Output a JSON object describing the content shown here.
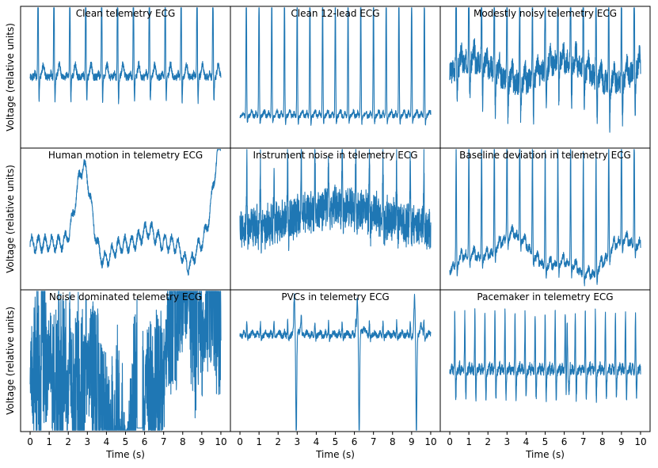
{
  "chart_data": {
    "type": "line",
    "layout": "3x3 grid of small multiples",
    "xlabel": "Time (s)",
    "ylabel": "Voltage (relative units)",
    "xlim": [
      -0.5,
      10.5
    ],
    "xticks": [
      0,
      1,
      2,
      3,
      4,
      5,
      6,
      7,
      8,
      9,
      10
    ],
    "ylim": [
      -1,
      1
    ],
    "yticks_shown": false,
    "grid": false,
    "line_color": "#1f77b4",
    "panels": [
      {
        "title": "Clean telemetry ECG",
        "type": "line",
        "waveform": {
          "kind": "telemetry",
          "beats_per_10s": 12,
          "baseline": 0.0,
          "r_peak": 1.6,
          "s_depth": -0.35,
          "t_wave": 0.18,
          "noise": 0.05,
          "drift": 0.0,
          "seed": 1
        }
      },
      {
        "title": "Clean 12-lead ECG",
        "type": "line",
        "waveform": {
          "kind": "sharp",
          "beats_per_10s": 15,
          "baseline": -0.55,
          "r_peak": 1.95,
          "s_depth": -0.12,
          "t_wave": 0.07,
          "noise": 0.03,
          "drift": 0.0,
          "seed": 2
        }
      },
      {
        "title": "Modestly noisy telemetry ECG",
        "type": "line",
        "waveform": {
          "kind": "telemetry",
          "beats_per_10s": 15,
          "baseline": 0.05,
          "r_peak": 1.55,
          "s_depth": -0.55,
          "t_wave": 0.2,
          "noise": 0.16,
          "drift": 0.15,
          "seed": 3
        }
      },
      {
        "title": "Human motion in telemetry ECG",
        "type": "line",
        "waveform": {
          "kind": "motion",
          "beats_per_10s": 0,
          "baseline": -0.1,
          "r_peak": 0.0,
          "s_depth": 0.0,
          "t_wave": 0.0,
          "noise": 0.05,
          "drift": 0.0,
          "seed": 4
        }
      },
      {
        "title": "Instrument noise in telemetry ECG",
        "type": "line",
        "waveform": {
          "kind": "instrument",
          "beats_per_10s": 14,
          "baseline": 0.0,
          "r_peak": 1.2,
          "s_depth": -0.25,
          "t_wave": 0.0,
          "noise": 0.35,
          "drift": 0.15,
          "seed": 5
        }
      },
      {
        "title": "Baseline deviation in telemetry ECG",
        "type": "line",
        "waveform": {
          "kind": "baseline",
          "beats_per_10s": 15,
          "baseline": -0.55,
          "r_peak": 1.7,
          "s_depth": -0.15,
          "t_wave": 0.12,
          "noise": 0.05,
          "drift": 0.35,
          "seed": 6
        }
      },
      {
        "title": "Noise dominated telemetry ECG",
        "type": "line",
        "waveform": {
          "kind": "noisedom",
          "beats_per_10s": 12,
          "baseline": 0.0,
          "r_peak": 0.8,
          "s_depth": 0.0,
          "t_wave": 0.0,
          "noise": 0.9,
          "drift": 0.4,
          "seed": 7
        }
      },
      {
        "title": "PVCs in telemetry ECG",
        "type": "line",
        "waveform": {
          "kind": "pvc",
          "beats_per_10s": 14,
          "baseline": 0.35,
          "r_peak": 0.2,
          "s_depth": -0.05,
          "t_wave": 0.05,
          "noise": 0.04,
          "drift": 0.0,
          "pvc_times": [
            2.9,
            6.2,
            9.2
          ],
          "seed": 8
        }
      },
      {
        "title": "Pacemaker in telemetry ECG",
        "type": "line",
        "waveform": {
          "kind": "pacer",
          "beats_per_10s": 19,
          "baseline": -0.15,
          "r_peak": 0.85,
          "s_depth": -0.4,
          "t_wave": 0.1,
          "noise": 0.06,
          "drift": 0.0,
          "seed": 9
        }
      }
    ]
  }
}
